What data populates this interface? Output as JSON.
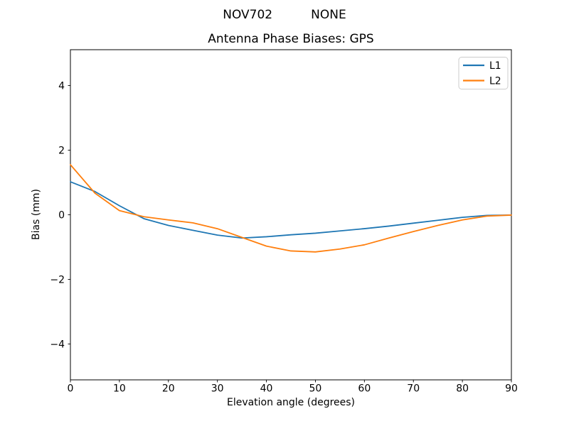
{
  "figure": {
    "suptitle": "NOV702          NONE"
  },
  "chart_data": {
    "type": "line",
    "suptitle": "NOV702          NONE",
    "title": "Antenna Phase Biases: GPS",
    "xlabel": "Elevation angle (degrees)",
    "ylabel": "Bias (mm)",
    "xlim": [
      0,
      90
    ],
    "ylim": [
      -5.11,
      5.11
    ],
    "x_ticks": [
      0,
      10,
      20,
      30,
      40,
      50,
      60,
      70,
      80,
      90
    ],
    "x_tick_labels": [
      "0",
      "10",
      "20",
      "30",
      "40",
      "50",
      "60",
      "70",
      "80",
      "90"
    ],
    "y_ticks": [
      -4,
      -2,
      0,
      2,
      4
    ],
    "y_tick_labels": [
      "−4",
      "−2",
      "0",
      "2",
      "4"
    ],
    "grid": false,
    "legend_position": "upper right",
    "x": [
      0,
      5,
      10,
      15,
      20,
      25,
      30,
      35,
      40,
      45,
      50,
      55,
      60,
      65,
      70,
      75,
      80,
      85,
      90
    ],
    "series": [
      {
        "name": "L1",
        "color": "#1f77b4",
        "values": [
          1.02,
          0.72,
          0.28,
          -0.12,
          -0.33,
          -0.48,
          -0.63,
          -0.72,
          -0.68,
          -0.62,
          -0.57,
          -0.5,
          -0.43,
          -0.35,
          -0.26,
          -0.17,
          -0.08,
          -0.02,
          -0.01
        ]
      },
      {
        "name": "L2",
        "color": "#ff7f0e",
        "values": [
          1.55,
          0.67,
          0.13,
          -0.06,
          -0.16,
          -0.25,
          -0.43,
          -0.7,
          -0.97,
          -1.12,
          -1.15,
          -1.06,
          -0.93,
          -0.72,
          -0.52,
          -0.33,
          -0.16,
          -0.04,
          -0.01
        ]
      }
    ]
  },
  "colors": {
    "background": "#ffffff",
    "spine": "#000000",
    "legend_border": "#cccccc",
    "series_blue": "#1f77b4",
    "series_orange": "#ff7f0e"
  }
}
